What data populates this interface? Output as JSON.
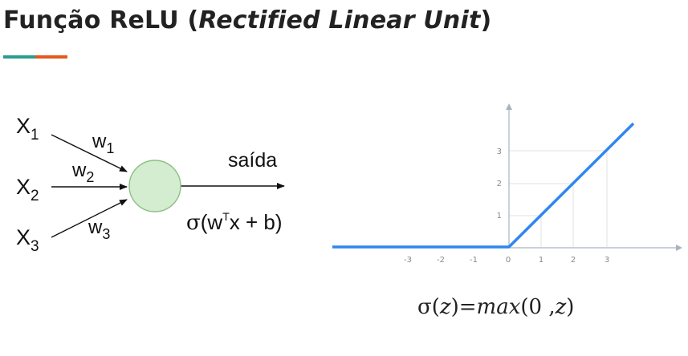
{
  "header": {
    "title_main": "Função ReLU (",
    "title_italic": "Rectified Linear Unit",
    "title_end": ")",
    "accent_colors": [
      "#2a9d8f",
      "#e35a1c"
    ]
  },
  "neuron": {
    "inputs": [
      {
        "label": "X",
        "sub": "1"
      },
      {
        "label": "X",
        "sub": "2"
      },
      {
        "label": "X",
        "sub": "3"
      }
    ],
    "weights": [
      {
        "label": "w",
        "sub": "1"
      },
      {
        "label": "w",
        "sub": "2"
      },
      {
        "label": "w",
        "sub": "3"
      }
    ],
    "output_label": "saída",
    "activation": {
      "sigma": "σ",
      "open": "(w",
      "sup": "T",
      "rest": "x + b)"
    },
    "node_fill": "#d4ecd0",
    "node_stroke": "#8cc084"
  },
  "relu_plot": {
    "x_ticks": [
      "-3",
      "-2",
      "-1",
      "0",
      "1",
      "2",
      "3"
    ],
    "y_ticks": [
      "1",
      "2",
      "3"
    ],
    "line_color": "#2f86f0",
    "formula": {
      "left": "σ(",
      "z1": "z",
      "mid": ")=",
      "max": "max",
      "args": "(0 ,",
      "z2": "z",
      "end": ")"
    }
  }
}
